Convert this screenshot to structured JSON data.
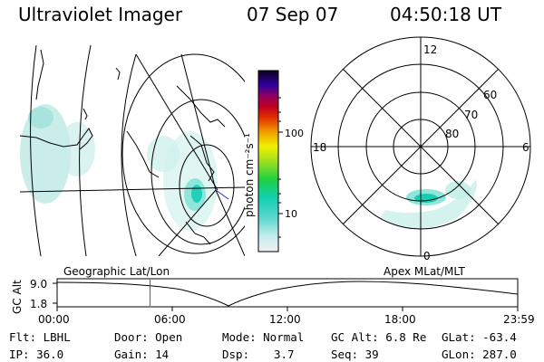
{
  "header": {
    "title": "Ultraviolet Imager",
    "date": "07 Sep 07",
    "time": "04:50:18 UT"
  },
  "colorbar": {
    "unit_label": "photon cm⁻²s⁻¹",
    "ticks": [
      "100",
      "10"
    ]
  },
  "polar_plot": {
    "mlt_labels": {
      "top": "12",
      "left": "18",
      "right": "6",
      "bottom": "0"
    },
    "lat_labels": [
      "60",
      "70",
      "80"
    ]
  },
  "timeline": {
    "left_title": "Geographic Lat/Lon",
    "right_title": "Apex MLat/MLT",
    "axis_label": "GC Alt",
    "y_top": "9.0",
    "y_bottom": "1.8",
    "x_ticks": [
      "00:00",
      "06:00",
      "12:00",
      "18:00",
      "23:59"
    ],
    "marker_time_hours": 4.84
  },
  "info": {
    "flt": "Flt: LBHL",
    "ip": "IP: 36.0",
    "door": "Door: Open",
    "gain": "Gain: 14",
    "mode": "Mode: Normal",
    "dsp_label": "Dsp:",
    "dsp_value": "3.7",
    "gcalt": "GC Alt: 6.8 Re",
    "seq": "Seq: 39",
    "glat": "GLat: -63.4",
    "glon": "GLon: 287.0"
  },
  "colors": {
    "aurora": "#3ee8c8",
    "aurora_faint": "#b8f0ea",
    "marker": "#dd2222"
  }
}
